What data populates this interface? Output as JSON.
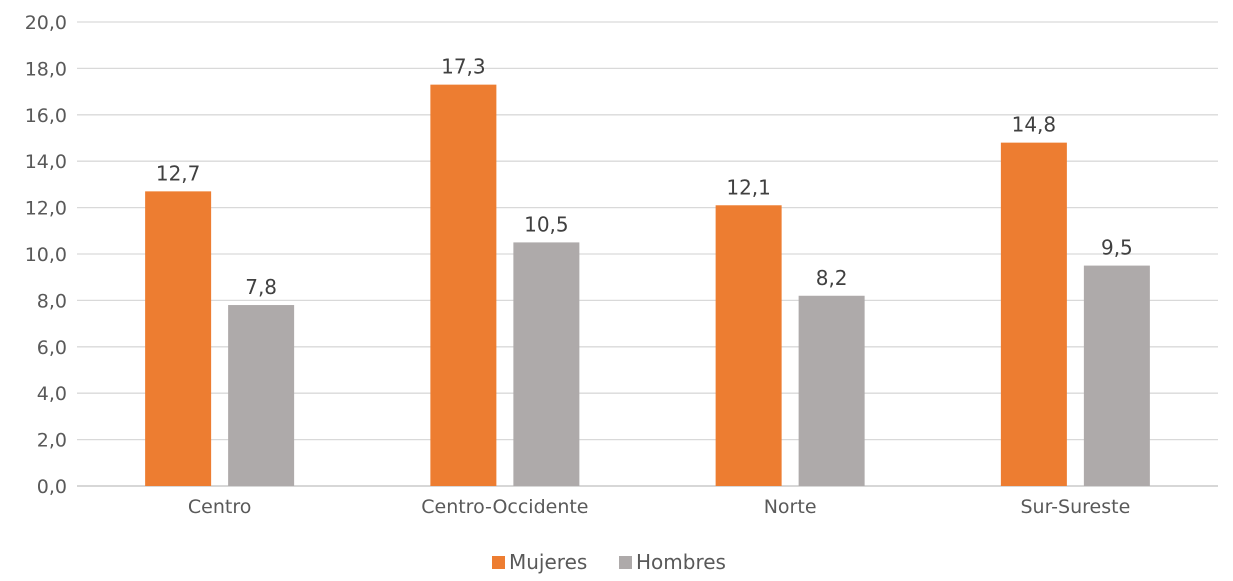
{
  "chart_data": {
    "type": "bar",
    "categories": [
      "Centro",
      "Centro-Occidente",
      "Norte",
      "Sur-Sureste"
    ],
    "series": [
      {
        "name": "Mujeres",
        "values": [
          12.7,
          17.3,
          12.1,
          14.8
        ],
        "labels": [
          "12,7",
          "17,3",
          "12,1",
          "14,8"
        ],
        "color": "#ED7D31"
      },
      {
        "name": "Hombres",
        "values": [
          7.8,
          10.5,
          8.2,
          9.5
        ],
        "labels": [
          "7,8",
          "10,5",
          "8,2",
          "9,5"
        ],
        "color": "#AEAAAA"
      }
    ],
    "y_ticks": [
      "0,0",
      "2,0",
      "4,0",
      "6,0",
      "8,0",
      "10,0",
      "12,0",
      "14,0",
      "16,0",
      "18,0",
      "20,0"
    ],
    "ylim": [
      0,
      20
    ],
    "grid": true,
    "legend_position": "bottom",
    "title": "",
    "xlabel": "",
    "ylabel": ""
  }
}
